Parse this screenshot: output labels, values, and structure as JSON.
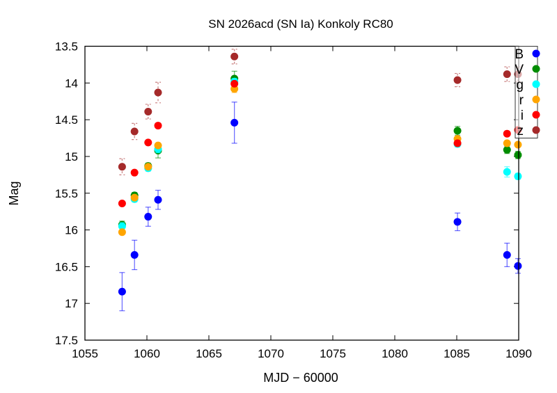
{
  "chart_data": {
    "type": "scatter",
    "title": "SN 2026acd (SN Ia) Konkoly RC80",
    "xlabel": "MJD − 60000",
    "ylabel": "Mag",
    "xlim": [
      1055,
      1090
    ],
    "ylim": [
      17.5,
      13.5
    ],
    "y_inverted": true,
    "xticks": [
      1055,
      1060,
      1065,
      1070,
      1075,
      1080,
      1085,
      1090
    ],
    "yticks": [
      13.5,
      14,
      14.5,
      15,
      15.5,
      16,
      16.5,
      17,
      17.5
    ],
    "ytick_labels": [
      "13.5",
      "14",
      "14.5",
      "15",
      "15.5",
      "16",
      "16.5",
      "17",
      "17.5"
    ],
    "grid": false,
    "legend_position": "top-right",
    "x": [
      1058.0,
      1059.0,
      1060.1,
      1060.9,
      1067.06,
      1085.06,
      1089.06,
      1089.94
    ],
    "series": [
      {
        "name": "B",
        "color": "#0000ff",
        "values": [
          16.84,
          16.34,
          15.82,
          15.59,
          14.54,
          15.89,
          16.34,
          16.49
        ],
        "errors": [
          0.26,
          0.2,
          0.13,
          0.13,
          0.28,
          0.12,
          0.16,
          0.1
        ]
      },
      {
        "name": "V",
        "color": "#008c00",
        "values": [
          15.93,
          15.53,
          15.13,
          14.92,
          13.94,
          14.65,
          14.91,
          14.98
        ],
        "errors": [
          0.05,
          0.04,
          0.04,
          0.1,
          0.1,
          0.06,
          0.05,
          0.05
        ]
      },
      {
        "name": "g",
        "color": "#00ffff",
        "values": [
          15.95,
          15.58,
          15.16,
          14.9,
          13.98,
          14.83,
          15.21,
          15.27
        ],
        "errors": [
          0.05,
          0.04,
          0.04,
          0.05,
          0.04,
          0.04,
          0.07,
          0.04
        ]
      },
      {
        "name": "r",
        "color": "#ffa500",
        "values": [
          16.03,
          15.56,
          15.14,
          14.85,
          14.08,
          14.76,
          14.82,
          14.84
        ],
        "errors": [
          0.03,
          0.03,
          0.03,
          0.03,
          0.05,
          0.03,
          0.03,
          0.03
        ]
      },
      {
        "name": "i",
        "color": "#ff0000",
        "values": [
          15.64,
          15.22,
          14.81,
          14.58,
          14.01,
          14.82,
          14.69,
          14.64
        ],
        "errors": [
          0.02,
          0.02,
          0.02,
          0.02,
          0.03,
          0.02,
          0.02,
          0.02
        ]
      },
      {
        "name": "z",
        "color": "#a52a2a",
        "values": [
          15.14,
          14.66,
          14.39,
          14.13,
          13.64,
          13.96,
          13.88,
          13.88
        ],
        "errors": [
          0.11,
          0.11,
          0.1,
          0.14,
          0.1,
          0.09,
          0.1,
          0.1
        ]
      }
    ]
  }
}
